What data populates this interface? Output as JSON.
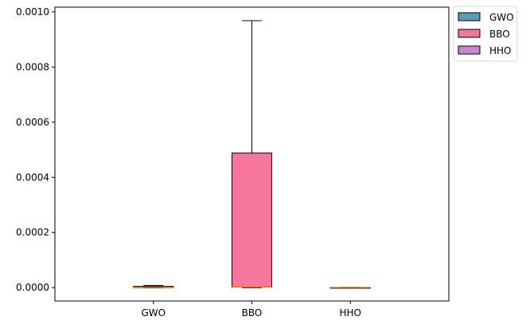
{
  "chart_data": {
    "type": "box",
    "categories": [
      "GWO",
      "BBO",
      "HHO"
    ],
    "series": [
      {
        "name": "GWO",
        "color": "#5a9bb5",
        "q1": 5e-07,
        "median": 2e-06,
        "q3": 5e-06,
        "whisker_low": 0.0,
        "whisker_high": 8e-06
      },
      {
        "name": "BBO",
        "color": "#f5759c",
        "q1": 2.5e-06,
        "median": 3e-06,
        "q3": 0.000488,
        "whisker_low": 0.0,
        "whisker_high": 0.000968
      },
      {
        "name": "HHO",
        "color": "#c886cf",
        "q1": 0.0,
        "median": 3e-07,
        "q3": 8e-07,
        "whisker_low": 0.0,
        "whisker_high": 1e-06
      }
    ],
    "median_color": "#ff7f0e",
    "y_ticks": [
      "0.0000",
      "0.0002",
      "0.0004",
      "0.0006",
      "0.0008",
      "0.0010"
    ],
    "y_tick_values": [
      0,
      0.0002,
      0.0004,
      0.0006,
      0.0008,
      0.001
    ],
    "ylim": [
      -4.84e-05,
      0.001017
    ],
    "grid": false,
    "legend_position": "outside-top-right",
    "title": "",
    "xlabel": "",
    "ylabel": ""
  }
}
